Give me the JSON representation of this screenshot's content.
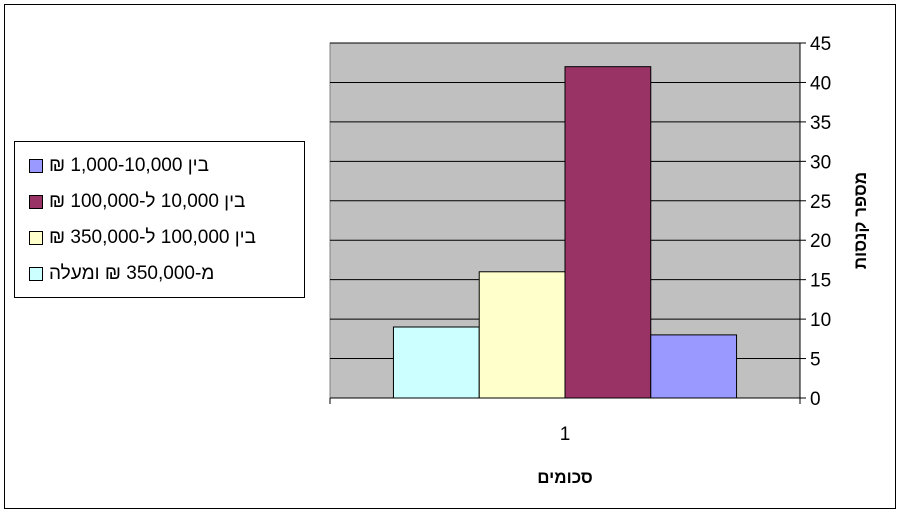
{
  "chart_data": {
    "type": "bar",
    "categories": [
      "1"
    ],
    "series": [
      {
        "name": "מ-350,000 ₪ ומעלה",
        "values": [
          9
        ],
        "color": "#ccffff"
      },
      {
        "name": "בין 100,000 ל-350,000 ₪",
        "values": [
          16
        ],
        "color": "#ffffcc"
      },
      {
        "name": "בין 10,000 ל-100,000 ₪",
        "values": [
          42
        ],
        "color": "#993366"
      },
      {
        "name": "בין 1,000-10,000 ₪",
        "values": [
          8
        ],
        "color": "#9999ff"
      }
    ],
    "legend_order": [
      3,
      2,
      1,
      0
    ],
    "xlabel": "סכומים",
    "ylabel": "מספר קנסות",
    "ylim": [
      0,
      45
    ],
    "ytick_step": 5,
    "yaxis_position": "right",
    "legend_position": "left",
    "plot_background": "#c0c0c0",
    "grid": true
  }
}
